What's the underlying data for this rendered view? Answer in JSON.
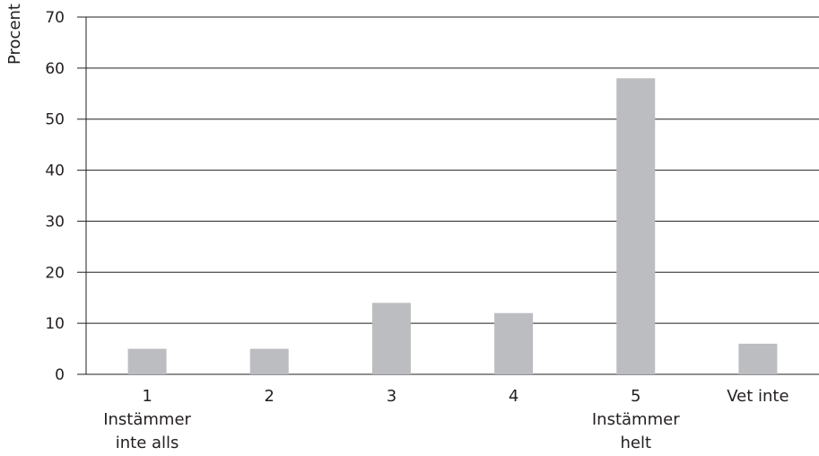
{
  "chart_data": {
    "type": "bar",
    "title": "",
    "xlabel": "",
    "ylabel": "Procent",
    "ylim": [
      0,
      70
    ],
    "yticks": [
      0,
      10,
      20,
      30,
      40,
      50,
      60,
      70
    ],
    "grid": true,
    "categories": [
      [
        "1",
        "Instämmer",
        "inte alls"
      ],
      [
        "2"
      ],
      [
        "3"
      ],
      [
        "4"
      ],
      [
        "5",
        "Instämmer",
        "helt"
      ],
      [
        "Vet inte"
      ]
    ],
    "values": [
      5,
      5,
      14,
      12,
      58,
      6
    ],
    "colors": {
      "bar": "#bcbdc0",
      "line": "#231f20"
    }
  }
}
